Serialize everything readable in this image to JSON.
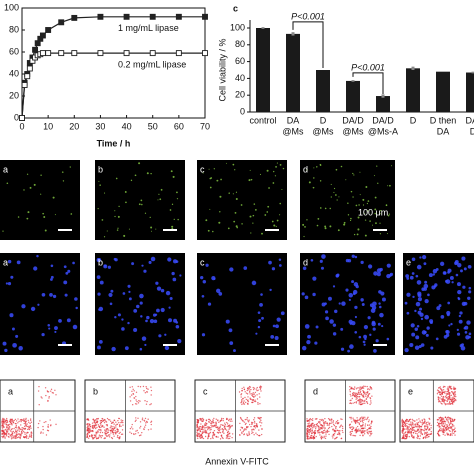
{
  "chart_data": [
    {
      "type": "line",
      "xlabel": "Time / h",
      "x": [
        0,
        1,
        2,
        3,
        4,
        5,
        6,
        7,
        8,
        10,
        15,
        20,
        30,
        40,
        50,
        60,
        70
      ],
      "series": [
        {
          "name": "1 mg/mL lipase",
          "color": "#222222",
          "marker": "filled-square",
          "values": [
            0,
            32,
            40,
            50,
            55,
            62,
            68,
            72,
            75,
            80,
            87,
            91,
            92,
            92,
            92,
            92,
            92
          ]
        },
        {
          "name": "0.2 mg/mL lipase",
          "color": "#222222",
          "marker": "open-square",
          "values": [
            0,
            30,
            38,
            45,
            52,
            55,
            57,
            58,
            59,
            59,
            59,
            59,
            59,
            59,
            59,
            59,
            59
          ]
        }
      ],
      "xlim": [
        0,
        70
      ],
      "xticks": [
        0,
        10,
        20,
        30,
        40,
        50,
        60,
        70
      ],
      "ylim": [
        0,
        100
      ],
      "yticks": [
        0,
        20,
        40,
        60,
        80,
        100
      ]
    },
    {
      "type": "bar",
      "panel_label": "c",
      "ylabel": "Cell viability / %",
      "categories": [
        [
          "control"
        ],
        [
          "DA",
          "@Ms"
        ],
        [
          "D",
          "@Ms"
        ],
        [
          "DA/D",
          "@Ms"
        ],
        [
          "DA/D",
          "@Ms-A"
        ],
        [
          "D"
        ],
        [
          "D then",
          "DA"
        ],
        [
          "DA/",
          "D"
        ]
      ],
      "values": [
        100,
        93,
        50,
        37,
        19,
        52,
        48,
        47
      ],
      "errors": [
        1,
        2,
        0,
        1,
        2,
        2,
        0,
        1
      ],
      "color": "#1a1a1a",
      "annotations": [
        "P<0.001",
        "P<0.001"
      ],
      "ylim": [
        0,
        100
      ],
      "yticks": [
        0,
        20,
        40,
        60,
        80,
        100
      ]
    }
  ],
  "fluorescence": {
    "rows": [
      [
        "a",
        "b",
        "c",
        "d"
      ],
      [
        "a",
        "b",
        "c",
        "d",
        "e"
      ]
    ],
    "scale_bar": "100 μm"
  },
  "flow_cytometry": {
    "panels": [
      "a",
      "b",
      "c",
      "d",
      "e"
    ],
    "x_label": "Annexin V-FITC"
  }
}
